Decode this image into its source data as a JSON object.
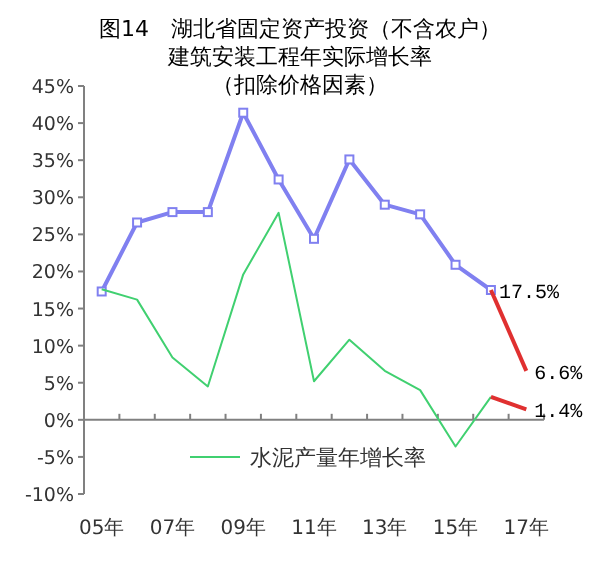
{
  "chart_data": {
    "type": "line",
    "title": "图14　湖北省固定资产投资（不含农户）建筑安装工程年实际增长率",
    "subtitle": "（扣除价格因素）",
    "categories": [
      "05年",
      null,
      "07年",
      null,
      "09年",
      null,
      "11年",
      null,
      "13年",
      null,
      "15年",
      null,
      "17年"
    ],
    "series": [
      {
        "color": "#8080f0",
        "marker": "square",
        "values": [
          17.3,
          26.6,
          28.0,
          28.0,
          41.4,
          32.4,
          24.4,
          35.1,
          29.0,
          27.7,
          20.9,
          17.5,
          null
        ]
      },
      {
        "color": "#e03030",
        "marker": "none",
        "values": [
          null,
          null,
          null,
          null,
          null,
          null,
          null,
          null,
          null,
          null,
          null,
          17.5,
          6.6
        ],
        "value_labels": [
          null,
          null,
          null,
          null,
          null,
          null,
          null,
          null,
          null,
          null,
          null,
          "17.5%",
          "6.6%"
        ]
      },
      {
        "name": "水泥产量年增长率",
        "color": "#40d070",
        "marker": "none",
        "values": [
          17.6,
          16.2,
          8.4,
          4.5,
          19.6,
          27.9,
          5.2,
          10.8,
          6.6,
          4.0,
          -3.6,
          3.1,
          null
        ]
      },
      {
        "color": "#e03030",
        "marker": "none",
        "values": [
          null,
          null,
          null,
          null,
          null,
          null,
          null,
          null,
          null,
          null,
          null,
          3.1,
          1.4
        ],
        "value_labels": [
          null,
          null,
          null,
          null,
          null,
          null,
          null,
          null,
          null,
          null,
          null,
          null,
          "1.4%"
        ]
      }
    ],
    "ylim": [
      -10,
      45
    ],
    "yticks": [
      {
        "value": -10,
        "label": "-10%"
      },
      {
        "value": -5,
        "label": "-5%"
      },
      {
        "value": 0,
        "label": "0%"
      },
      {
        "value": 5,
        "label": "5%"
      },
      {
        "value": 10,
        "label": "10%"
      },
      {
        "value": 15,
        "label": "15%"
      },
      {
        "value": 20,
        "label": "20%"
      },
      {
        "value": 25,
        "label": "25%"
      },
      {
        "value": 30,
        "label": "30%"
      },
      {
        "value": 35,
        "label": "35%"
      },
      {
        "value": 40,
        "label": "40%"
      },
      {
        "value": 45,
        "label": "45%"
      }
    ],
    "legend": "bottom"
  }
}
